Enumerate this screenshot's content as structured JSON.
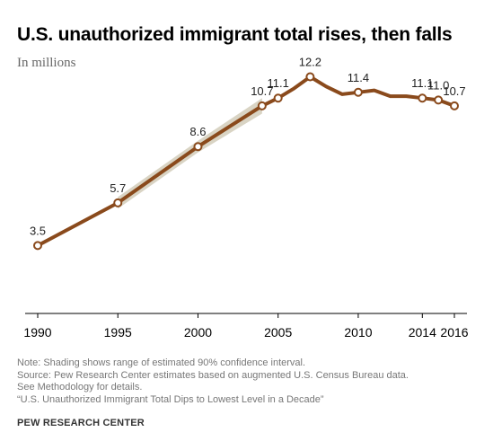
{
  "header": {
    "title": "U.S. unauthorized immigrant total rises, then falls",
    "subtitle": "In millions"
  },
  "chart_data": {
    "type": "line",
    "title": "U.S. unauthorized immigrant total rises, then falls",
    "subtitle": "In millions",
    "xlabel": "",
    "ylabel": "",
    "x_ticks": [
      1990,
      1995,
      2000,
      2005,
      2010,
      2014,
      2016
    ],
    "xlim": [
      1990,
      2016
    ],
    "ylim": [
      0,
      13
    ],
    "grid": false,
    "series": [
      {
        "values": [
          {
            "x": 1990,
            "y": 3.5,
            "label": "3.5",
            "marker": true
          },
          {
            "x": 1995,
            "y": 5.7,
            "label": "5.7",
            "marker": true
          },
          {
            "x": 2000,
            "y": 8.6,
            "label": "8.6",
            "marker": true
          },
          {
            "x": 2004,
            "y": 10.7,
            "label": "10.7",
            "marker": true
          },
          {
            "x": 2005,
            "y": 11.1,
            "label": "11.1",
            "marker": true
          },
          {
            "x": 2006,
            "y": 11.6,
            "label": "",
            "marker": false
          },
          {
            "x": 2007,
            "y": 12.2,
            "label": "12.2",
            "marker": true
          },
          {
            "x": 2008,
            "y": 11.7,
            "label": "",
            "marker": false
          },
          {
            "x": 2009,
            "y": 11.3,
            "label": "",
            "marker": false
          },
          {
            "x": 2010,
            "y": 11.4,
            "label": "11.4",
            "marker": true
          },
          {
            "x": 2011,
            "y": 11.5,
            "label": "",
            "marker": false
          },
          {
            "x": 2012,
            "y": 11.2,
            "label": "",
            "marker": false
          },
          {
            "x": 2013,
            "y": 11.2,
            "label": "",
            "marker": false
          },
          {
            "x": 2014,
            "y": 11.1,
            "label": "11.1",
            "marker": true
          },
          {
            "x": 2015,
            "y": 11.0,
            "label": "11.0",
            "marker": true
          },
          {
            "x": 2016,
            "y": 10.7,
            "label": "10.7",
            "marker": true
          }
        ]
      }
    ],
    "confidence_band": [
      {
        "x": 1995,
        "low": 5.4,
        "high": 6.0
      },
      {
        "x": 2000,
        "low": 8.3,
        "high": 8.9
      },
      {
        "x": 2004,
        "low": 10.3,
        "high": 11.1
      }
    ],
    "colors": {
      "line": "#8a4a1c",
      "band": "#d9d4c4",
      "marker_fill": "#ffffff",
      "axis": "#000000",
      "label": "#222222"
    }
  },
  "notes": {
    "line1": "Note: Shading shows range of estimated 90% confidence interval.",
    "line2": "Source: Pew Research Center estimates based on augmented U.S. Census Bureau data.",
    "line3": "See Methodology for details.",
    "line4": "“U.S. Unauthorized Immigrant Total Dips to Lowest Level in a Decade”"
  },
  "footer": {
    "brand": "PEW RESEARCH CENTER"
  }
}
